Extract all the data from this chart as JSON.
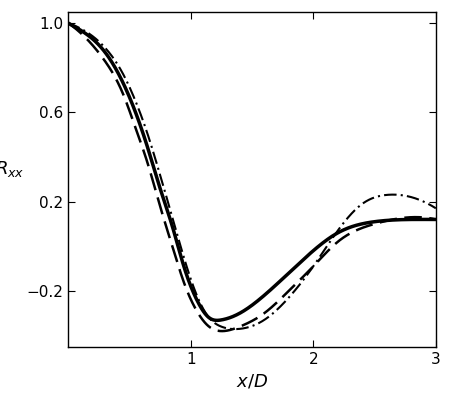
{
  "title": "",
  "xlabel": "$x/D$",
  "ylabel": "$R_{xx}$",
  "xlim": [
    0.0,
    3.0
  ],
  "ylim": [
    -0.45,
    1.05
  ],
  "xticks": [
    1,
    2,
    3
  ],
  "yticks": [
    -0.2,
    0.2,
    0.6,
    1.0
  ],
  "background_color": "#ffffff",
  "line_color": "#000000",
  "figsize": [
    4.54,
    3.94
  ],
  "dpi": 100,
  "solid_x": [
    0.0,
    0.15,
    0.3,
    0.45,
    0.55,
    0.65,
    0.75,
    0.85,
    0.95,
    1.05,
    1.15,
    1.25,
    1.4,
    1.6,
    1.8,
    2.0,
    2.2,
    2.5,
    2.8,
    3.0
  ],
  "solid_y": [
    1.0,
    0.95,
    0.87,
    0.73,
    0.6,
    0.44,
    0.26,
    0.09,
    -0.1,
    -0.24,
    -0.32,
    -0.33,
    -0.3,
    -0.22,
    -0.12,
    -0.02,
    0.06,
    0.11,
    0.12,
    0.12
  ],
  "dashed_x": [
    0.0,
    0.15,
    0.3,
    0.45,
    0.55,
    0.65,
    0.75,
    0.85,
    0.95,
    1.05,
    1.15,
    1.25,
    1.4,
    1.6,
    1.8,
    2.0,
    2.2,
    2.5,
    2.8,
    3.0
  ],
  "dashed_y": [
    1.0,
    0.93,
    0.83,
    0.68,
    0.53,
    0.37,
    0.18,
    0.0,
    -0.17,
    -0.29,
    -0.36,
    -0.38,
    -0.36,
    -0.3,
    -0.2,
    -0.09,
    0.02,
    0.1,
    0.13,
    0.12
  ],
  "dashdot_x": [
    0.0,
    0.15,
    0.3,
    0.45,
    0.55,
    0.65,
    0.75,
    0.85,
    0.95,
    1.05,
    1.15,
    1.25,
    1.4,
    1.6,
    1.8,
    2.0,
    2.2,
    2.4,
    2.6,
    2.8,
    3.0
  ],
  "dashdot_y": [
    1.0,
    0.96,
    0.89,
    0.77,
    0.65,
    0.5,
    0.32,
    0.13,
    -0.06,
    -0.22,
    -0.32,
    -0.36,
    -0.37,
    -0.33,
    -0.23,
    -0.09,
    0.07,
    0.19,
    0.23,
    0.22,
    0.17
  ]
}
